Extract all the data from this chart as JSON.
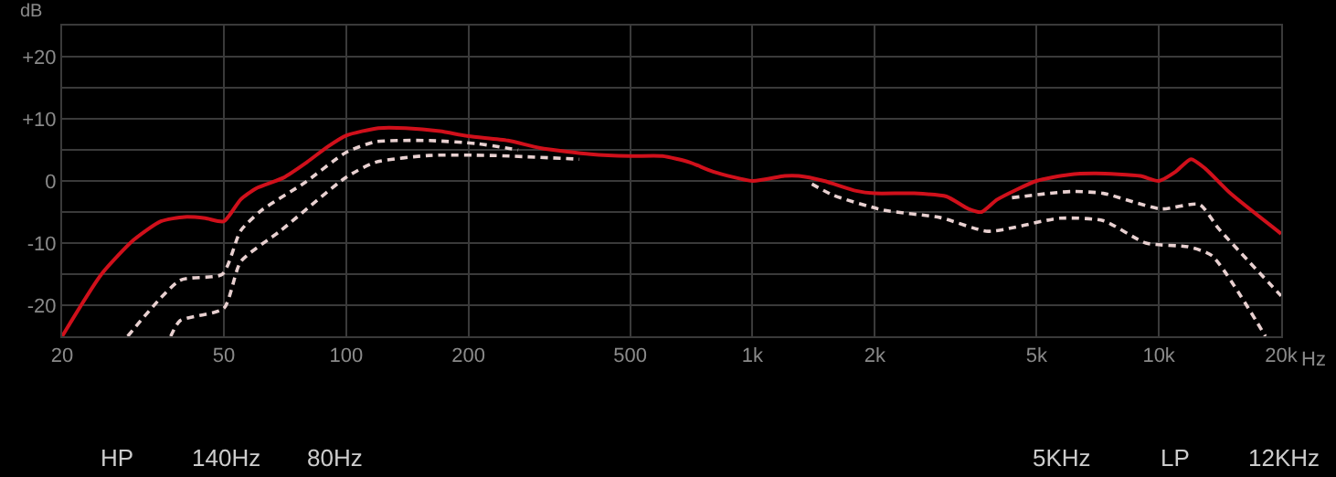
{
  "chart_data": {
    "type": "line",
    "ylabel": "dB",
    "log": "x",
    "grid": true,
    "marker": "none",
    "xlim": [
      20,
      20000
    ],
    "ylim": [
      -25,
      25
    ],
    "xticks": [
      20,
      50,
      100,
      200,
      500,
      {
        "value": 1000,
        "label": "1k"
      },
      {
        "value": 2000,
        "label": "2k"
      },
      {
        "value": 5000,
        "label": "5k"
      },
      {
        "value": 10000,
        "label": "10k"
      },
      {
        "value": 20000,
        "label": "20k"
      }
    ],
    "xlabel": "Hz",
    "yticks": [
      {
        "value": -25,
        "label": null
      },
      -20,
      {
        "value": -15,
        "label": null
      },
      -10,
      {
        "value": -5,
        "label": null
      },
      0,
      {
        "value": 5,
        "label": null
      },
      {
        "value": 10,
        "label": "+10"
      },
      {
        "value": 15,
        "label": null
      },
      {
        "value": 20,
        "label": "+20"
      },
      {
        "value": 25,
        "label": null
      }
    ],
    "series": [
      {
        "color": "#d0101b",
        "line_style": "solid",
        "x": [
          20,
          25,
          30,
          35,
          40,
          45,
          50,
          55,
          60,
          70,
          80,
          90,
          100,
          120,
          140,
          170,
          200,
          250,
          300,
          400,
          500,
          600,
          700,
          800,
          1000,
          1200,
          1300,
          1500,
          1800,
          2000,
          2500,
          3000,
          3400,
          3660,
          4000,
          5000,
          6000,
          7000,
          9000,
          10000,
          11000,
          12000,
          13000,
          15000,
          20000
        ],
        "values": [
          -25,
          -15,
          -9.5,
          -6.5,
          -5.8,
          -6,
          -6.5,
          -3,
          -1.2,
          0.5,
          3,
          5.5,
          7.3,
          8.5,
          8.5,
          8,
          7.2,
          6.5,
          5.3,
          4.3,
          4,
          4,
          3,
          1.5,
          0,
          0.8,
          0.8,
          0,
          -1.6,
          -2,
          -2,
          -2.5,
          -4.5,
          -5,
          -3,
          0,
          1,
          1.2,
          0.8,
          0,
          1.5,
          3.5,
          2,
          -2,
          -8.5
        ]
      },
      {
        "color": "#e8d0d0",
        "line_style": "dashed",
        "x": [
          29,
          39,
          49.6,
          55,
          62,
          79,
          100,
          118,
          160,
          210,
          265
        ],
        "values": [
          -25,
          -16,
          -15,
          -8,
          -4.7,
          -0.3,
          4.6,
          6.3,
          6.5,
          6,
          5
        ]
      },
      {
        "color": "#e8d0d0",
        "line_style": "dashed",
        "x": [
          37,
          39,
          50,
          55,
          69,
          100,
          118,
          160,
          227,
          375
        ],
        "values": [
          -25,
          -22.5,
          -20.5,
          -13,
          -8,
          0.6,
          3,
          4.1,
          4.1,
          3.5
        ]
      },
      {
        "color": "#e8d0d0",
        "line_style": "dashed",
        "x": [
          4350,
          6070,
          7300,
          10100,
          12600,
          14000,
          20000
        ],
        "values": [
          -2.7,
          -1.7,
          -2,
          -4.5,
          -3.8,
          -7.6,
          -18.5
        ]
      },
      {
        "color": "#e8d0d0",
        "line_style": "dashed",
        "x": [
          1400,
          1580,
          2100,
          2900,
          3800,
          5700,
          7300,
          9300,
          11800,
          13500,
          18300
        ],
        "values": [
          -0.5,
          -2.3,
          -4.7,
          -5.9,
          -8.1,
          -6,
          -6.4,
          -10,
          -10.6,
          -12,
          -25
        ]
      }
    ],
    "annotations": [
      "HP",
      "140Hz",
      "80Hz",
      "5KHz",
      "LP",
      "12KHz"
    ]
  }
}
